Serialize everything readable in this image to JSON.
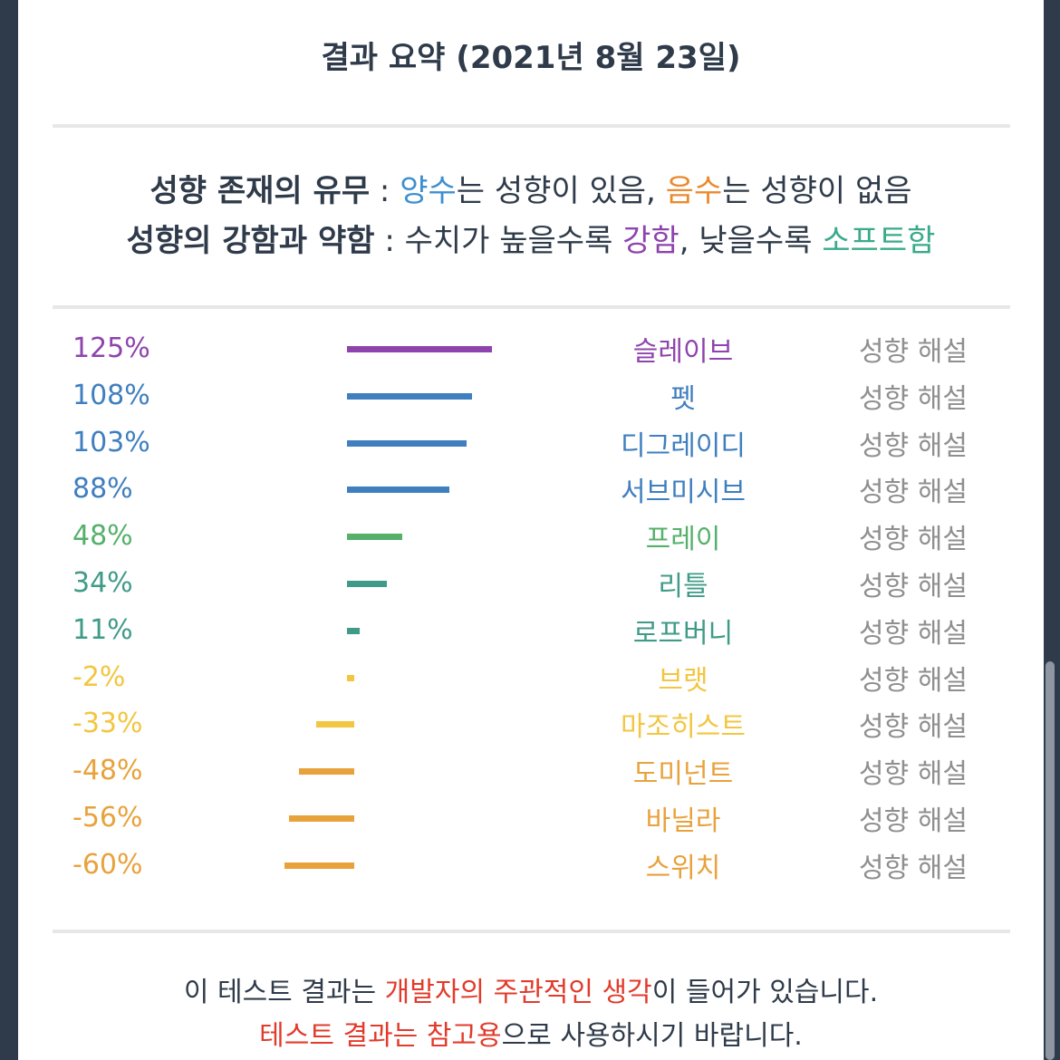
{
  "title": "결과 요약 (2021년 8월 23일)",
  "legend": {
    "line1": {
      "label": "성향 존재의 유무",
      "sep": " : ",
      "pos_word": "양수",
      "pos_rest": "는 성향이 있음, ",
      "neg_word": "음수",
      "neg_rest": "는 성향이 없음"
    },
    "line2": {
      "label": "성향의 강함과 약함",
      "sep": " : ",
      "part1": "수치가 높을수록 ",
      "strong": "강함",
      "part2": ", 낮을수록 ",
      "soft": "소프트함"
    }
  },
  "explain_label": "성향 해설",
  "chart_data": {
    "type": "bar",
    "categories": [
      "슬레이브",
      "펫",
      "디그레이디",
      "서브미시브",
      "프레이",
      "리틀",
      "로프버니",
      "브랫",
      "마조히스트",
      "도미넌트",
      "바닐라",
      "스위치"
    ],
    "values": [
      125,
      108,
      103,
      88,
      48,
      34,
      11,
      -2,
      -33,
      -48,
      -56,
      -60
    ],
    "labels": [
      "125%",
      "108%",
      "103%",
      "88%",
      "48%",
      "34%",
      "11%",
      "-2%",
      "-33%",
      "-48%",
      "-56%",
      "-60%"
    ],
    "colors": [
      "#8e44ad",
      "#3f7fbf",
      "#3f7fbf",
      "#3f7fbf",
      "#55b06a",
      "#3f9b87",
      "#3f9b87",
      "#f2c640",
      "#f2c640",
      "#e8a23c",
      "#e8a23c",
      "#e8a23c"
    ]
  },
  "footer": {
    "line1_a": "이 테스트 결과는 ",
    "line1_red": "개발자의 주관적인 생각",
    "line1_b": "이 들어가 있습니다.",
    "line2_red": "테스트 결과는 참고용",
    "line2_b": "으로 사용하시기 바랍니다."
  }
}
